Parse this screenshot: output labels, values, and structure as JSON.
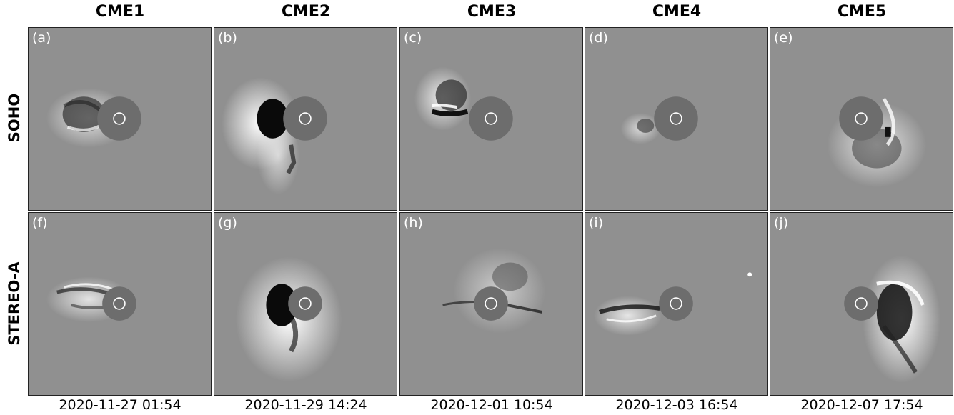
{
  "columns": [
    "CME1",
    "CME2",
    "CME3",
    "CME4",
    "CME5"
  ],
  "rows": [
    "SOHO",
    "STEREO-A"
  ],
  "panels_top": [
    "(a)",
    "(b)",
    "(c)",
    "(d)",
    "(e)"
  ],
  "panels_bottom": [
    "(f)",
    "(g)",
    "(h)",
    "(i)",
    "(j)"
  ],
  "dates": [
    "2020-11-27 01:54",
    "2020-11-29 14:24",
    "2020-12-01 10:54",
    "2020-12-03 16:54",
    "2020-12-07 17:54"
  ]
}
